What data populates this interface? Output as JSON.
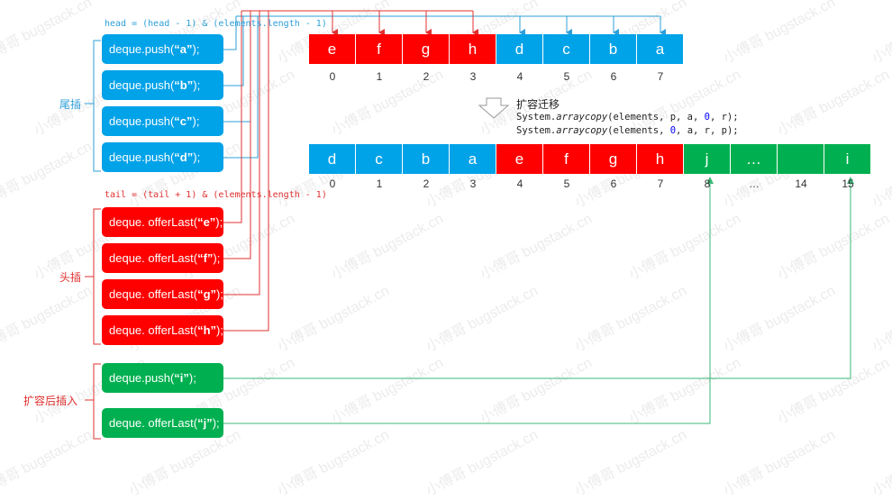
{
  "formulas": {
    "head": "head = (head - 1) & (elements.length - 1)",
    "tail": "tail = (tail + 1) & (elements.length - 1)"
  },
  "groups": {
    "tail_insert": "尾插",
    "head_insert": "头插",
    "after_expand": "扩容后插入"
  },
  "ops": {
    "push": [
      {
        "prefix": "deque.push(",
        "arg": "“a”",
        "suffix": ");"
      },
      {
        "prefix": "deque.push(",
        "arg": "“b”",
        "suffix": ");"
      },
      {
        "prefix": "deque.push(",
        "arg": "“c”",
        "suffix": ");"
      },
      {
        "prefix": "deque.push(",
        "arg": "“d”",
        "suffix": ");"
      }
    ],
    "offer": [
      {
        "prefix": "deque. offerLast(",
        "arg": "“e”",
        "suffix": ");"
      },
      {
        "prefix": "deque. offerLast(",
        "arg": "“f”",
        "suffix": ");"
      },
      {
        "prefix": "deque. offerLast(",
        "arg": "“g”",
        "suffix": ");"
      },
      {
        "prefix": "deque. offerLast(",
        "arg": "“h”",
        "suffix": ");"
      }
    ],
    "after": [
      {
        "prefix": "deque.push(",
        "arg": "“i”",
        "suffix": ");"
      },
      {
        "prefix": "deque. offerLast(",
        "arg": "“j”",
        "suffix": ");"
      }
    ]
  },
  "array_before": {
    "cells": [
      "e",
      "f",
      "g",
      "h",
      "d",
      "c",
      "b",
      "a"
    ],
    "colors": [
      "red",
      "red",
      "red",
      "red",
      "blue",
      "blue",
      "blue",
      "blue"
    ],
    "indices": [
      "0",
      "1",
      "2",
      "3",
      "4",
      "5",
      "6",
      "7"
    ]
  },
  "array_after": {
    "cells": [
      "d",
      "c",
      "b",
      "a",
      "e",
      "f",
      "g",
      "h",
      "j",
      "…",
      "",
      "i"
    ],
    "colors": [
      "blue",
      "blue",
      "blue",
      "blue",
      "red",
      "red",
      "red",
      "red",
      "green",
      "green",
      "green",
      "green"
    ],
    "indices": [
      "0",
      "1",
      "2",
      "3",
      "4",
      "5",
      "6",
      "7",
      "8",
      "…",
      "14",
      "15"
    ]
  },
  "expand": {
    "title": "扩容迁移",
    "line1": {
      "pre": "System.",
      "fn": "arraycopy",
      "args_a": "(elements, p, a, ",
      "n0": "0",
      "args_b": ", r);"
    },
    "line2": {
      "pre": "System.",
      "fn": "arraycopy",
      "args_a": "(elements, ",
      "n0": "0",
      "args_b": ", a, r, p);"
    }
  },
  "watermark": "小傅哥 bugstack.cn",
  "colors": {
    "blue": "#00a2e8",
    "red": "#ff0000",
    "green": "#00b050",
    "blue_text": "#2e9fd8",
    "red_text": "#e03030",
    "green_line": "#3cb878"
  }
}
